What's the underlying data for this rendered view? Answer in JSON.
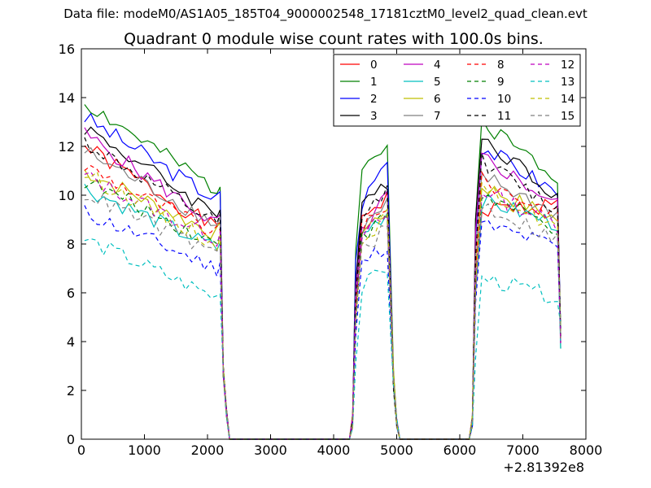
{
  "figure": {
    "suptitle": "Data file: modeM0/AS1A05_185T04_9000002548_17181cztM0_level2_quad_clean.evt"
  },
  "chart_data": {
    "type": "line",
    "title": "Quadrant 0 module wise count rates with 100.0s bins.",
    "xlabel": "",
    "ylabel": "",
    "x_offset_label": "+2.81392e8",
    "xlim": [
      0,
      8000
    ],
    "ylim": [
      0,
      16
    ],
    "x_ticks": [
      0,
      1000,
      2000,
      3000,
      4000,
      5000,
      6000,
      7000,
      8000
    ],
    "y_ticks": [
      0,
      2,
      4,
      6,
      8,
      10,
      12,
      14,
      16
    ],
    "grid": false,
    "legend": {
      "position": "top-right",
      "columns": 4
    },
    "segments": [
      {
        "start": 50,
        "end": 2350,
        "ramp_end_value": 2.8
      },
      {
        "start": 4250,
        "end": 5050,
        "ramp_end_value": 2.0
      },
      {
        "start": 6150,
        "end": 7650,
        "ramp_end_value": 4.2
      }
    ],
    "series": [
      {
        "name": "0",
        "color": "#ff0000",
        "style": "solid",
        "base": [
          12.0,
          8.6,
          9.2,
          9.9,
          9.4,
          9.6
        ],
        "noise": 0.35,
        "seed": 1
      },
      {
        "name": "1",
        "color": "#008000",
        "style": "solid",
        "base": [
          13.8,
          10.2,
          11.2,
          12.0,
          13.0,
          10.8
        ],
        "noise": 0.35,
        "seed": 2
      },
      {
        "name": "2",
        "color": "#0000ff",
        "style": "solid",
        "base": [
          13.2,
          9.8,
          9.7,
          11.5,
          12.0,
          10.1
        ],
        "noise": 0.35,
        "seed": 3
      },
      {
        "name": "3",
        "color": "#000000",
        "style": "solid",
        "base": [
          12.8,
          9.2,
          9.4,
          10.6,
          12.4,
          10.0
        ],
        "noise": 0.35,
        "seed": 4
      },
      {
        "name": "4",
        "color": "#bf00bf",
        "style": "solid",
        "base": [
          12.5,
          8.8,
          8.5,
          10.0,
          11.6,
          9.6
        ],
        "noise": 0.35,
        "seed": 5
      },
      {
        "name": "5",
        "color": "#00bfbf",
        "style": "solid",
        "base": [
          10.3,
          7.8,
          8.4,
          9.3,
          9.8,
          8.8
        ],
        "noise": 0.35,
        "seed": 6
      },
      {
        "name": "6",
        "color": "#bfbf00",
        "style": "solid",
        "base": [
          11.0,
          8.4,
          8.5,
          9.4,
          10.4,
          9.0
        ],
        "noise": 0.35,
        "seed": 7
      },
      {
        "name": "7",
        "color": "#808080",
        "style": "solid",
        "base": [
          11.8,
          8.8,
          8.6,
          9.6,
          10.8,
          9.2
        ],
        "noise": 0.35,
        "seed": 8
      },
      {
        "name": "8",
        "color": "#ff0000",
        "style": "dashed",
        "base": [
          11.2,
          8.4,
          8.7,
          9.3,
          10.6,
          9.2
        ],
        "noise": 0.35,
        "seed": 9
      },
      {
        "name": "9",
        "color": "#008000",
        "style": "dashed",
        "base": [
          10.6,
          8.0,
          8.2,
          9.2,
          10.0,
          8.6
        ],
        "noise": 0.35,
        "seed": 10
      },
      {
        "name": "10",
        "color": "#0000ff",
        "style": "dashed",
        "base": [
          9.3,
          7.0,
          7.2,
          8.0,
          8.8,
          7.9
        ],
        "noise": 0.35,
        "seed": 11
      },
      {
        "name": "11",
        "color": "#000000",
        "style": "dashed",
        "base": [
          12.2,
          8.8,
          9.0,
          10.2,
          11.4,
          9.4
        ],
        "noise": 0.35,
        "seed": 12
      },
      {
        "name": "12",
        "color": "#bf00bf",
        "style": "dashed",
        "base": [
          10.8,
          8.2,
          8.3,
          9.2,
          10.2,
          8.8
        ],
        "noise": 0.35,
        "seed": 13
      },
      {
        "name": "13",
        "color": "#00bfbf",
        "style": "dashed",
        "base": [
          8.2,
          5.8,
          6.2,
          7.0,
          6.6,
          5.8
        ],
        "noise": 0.35,
        "seed": 14
      },
      {
        "name": "14",
        "color": "#bfbf00",
        "style": "dashed",
        "base": [
          10.9,
          8.0,
          8.3,
          9.1,
          10.2,
          8.7
        ],
        "noise": 0.35,
        "seed": 15
      },
      {
        "name": "15",
        "color": "#808080",
        "style": "dashed",
        "base": [
          10.1,
          7.6,
          7.8,
          8.6,
          9.6,
          8.2
        ],
        "noise": 0.35,
        "seed": 16
      }
    ]
  }
}
